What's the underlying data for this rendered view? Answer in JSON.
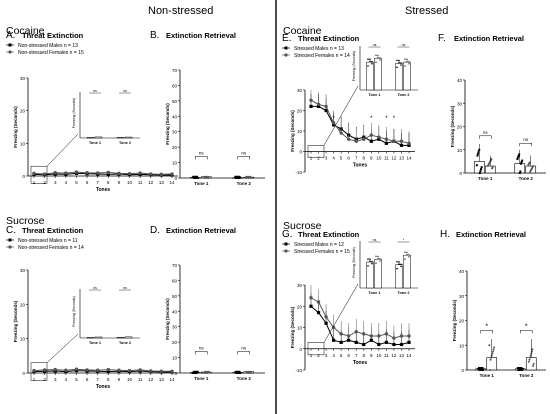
{
  "headers": {
    "left": "Non-stressed",
    "right": "Stressed"
  },
  "sections": {
    "top_left": "Cocaine",
    "top_right": "Cocaine",
    "bottom_left": "Sucrose",
    "bottom_right": "Sucrose"
  },
  "colors": {
    "male": "#000000",
    "female": "#555555",
    "axis": "#000000",
    "divider": "#000000"
  },
  "chart_data": [
    {
      "id": "A",
      "type": "line",
      "title": "Threat Extinction",
      "label": "A.",
      "xlabel": "Tones",
      "ylabel": "Freezing (Seconds)",
      "x": [
        1,
        2,
        3,
        4,
        5,
        6,
        7,
        8,
        9,
        10,
        11,
        12,
        13,
        14
      ],
      "ylim": [
        0,
        30
      ],
      "yticks": [
        0,
        10,
        20,
        30
      ],
      "legend": [
        "Non-stressed Males n = 13",
        "Non-stressed Females n = 15"
      ],
      "series": [
        {
          "name": "Non-stressed Males n = 13",
          "values": [
            0.5,
            0.4,
            0.6,
            0.5,
            0.8,
            0.7,
            0.6,
            0.5,
            0.6,
            0.4,
            0.5,
            0.4,
            0.3,
            0.3
          ]
        },
        {
          "name": "Non-stressed Females n = 15",
          "values": [
            0.8,
            0.6,
            1.0,
            0.9,
            1.2,
            1.0,
            0.9,
            1.1,
            0.8,
            0.7,
            0.9,
            0.6,
            0.5,
            0.6
          ]
        }
      ],
      "inset": {
        "ylabel": "Freezing (Seconds)",
        "categories": [
          "Tone 1",
          "Tone 2"
        ],
        "ylim": [
          0,
          30
        ],
        "values": [
          [
            0.5,
            0.8
          ],
          [
            0.4,
            0.7
          ]
        ],
        "sig": [
          "ns",
          "ns"
        ]
      }
    },
    {
      "id": "B",
      "type": "bar",
      "title": "Extinction Retrieval",
      "label": "B.",
      "ylabel": "Freezing (Seconds)",
      "categories": [
        "Tone 1",
        "Tone 2"
      ],
      "ylim": [
        0,
        70
      ],
      "yticks": [
        0,
        10,
        20,
        30,
        40,
        50,
        60,
        70
      ],
      "series": [
        {
          "values": [
            0.3,
            0.2
          ]
        },
        {
          "values": [
            0.8,
            0.5
          ]
        }
      ],
      "sig": [
        "ns",
        "ns"
      ]
    },
    {
      "id": "C",
      "type": "line",
      "title": "Threat Extinction",
      "label": "C.",
      "xlabel": "Tones",
      "ylabel": "Freezing (Seconds)",
      "x": [
        1,
        2,
        3,
        4,
        5,
        6,
        7,
        8,
        9,
        10,
        11,
        12,
        13,
        14
      ],
      "ylim": [
        0,
        30
      ],
      "yticks": [
        0,
        10,
        20,
        30
      ],
      "legend": [
        "Non-stressed Males n = 11",
        "Non-stressed Females n = 14"
      ],
      "series": [
        {
          "name": "Non-stressed Males n = 11",
          "values": [
            0.4,
            0.5,
            0.6,
            0.4,
            0.7,
            0.6,
            0.5,
            0.4,
            0.5,
            0.4,
            0.6,
            0.4,
            0.3,
            0.3
          ]
        },
        {
          "name": "Non-stressed Females n = 14",
          "values": [
            0.7,
            0.9,
            1.0,
            0.8,
            1.1,
            0.9,
            0.8,
            1.0,
            0.8,
            0.7,
            0.9,
            0.6,
            0.5,
            0.5
          ]
        }
      ],
      "inset": {
        "ylabel": "Freezing (Seconds)",
        "categories": [
          "Tone 1",
          "Tone 2"
        ],
        "ylim": [
          0,
          30
        ],
        "values": [
          [
            0.4,
            0.7
          ],
          [
            0.5,
            0.8
          ]
        ],
        "sig": [
          "ns",
          "ns"
        ]
      }
    },
    {
      "id": "D",
      "type": "bar",
      "title": "Extinction Retrieval",
      "label": "D.",
      "ylabel": "Freezing (Seconds)",
      "categories": [
        "Tone 1",
        "Tone 2"
      ],
      "ylim": [
        0,
        70
      ],
      "yticks": [
        0,
        10,
        20,
        30,
        40,
        50,
        60,
        70
      ],
      "series": [
        {
          "values": [
            0.3,
            0.3
          ]
        },
        {
          "values": [
            0.6,
            0.8
          ]
        }
      ],
      "sig": [
        "ns",
        "ns"
      ]
    },
    {
      "id": "E",
      "type": "line",
      "title": "Threat Extinction",
      "label": "E.",
      "xlabel": "Tones",
      "ylabel": "Freezing (Seconds)",
      "x": [
        1,
        2,
        3,
        4,
        5,
        6,
        7,
        8,
        9,
        10,
        11,
        12,
        13,
        14
      ],
      "ylim": [
        -10,
        30
      ],
      "yticks": [
        -10,
        0,
        10,
        20,
        30
      ],
      "legend": [
        "Stressed Males n = 13",
        "Stressed Females n = 14"
      ],
      "series": [
        {
          "name": "Stressed Males n = 13",
          "values": [
            22,
            22,
            20,
            13,
            11,
            8,
            6,
            7,
            5,
            6,
            4,
            5,
            3,
            3
          ]
        },
        {
          "name": "Stressed Females n = 14",
          "values": [
            25,
            23,
            22,
            14,
            9,
            6,
            5,
            6,
            8,
            7,
            6,
            5,
            5,
            4
          ]
        }
      ],
      "sig_tones": [
        4,
        9,
        11,
        12
      ],
      "inset": {
        "ylabel": "Freezing (Seconds)",
        "categories": [
          "Tone 1",
          "Tone 2"
        ],
        "ylim": [
          0,
          30
        ],
        "values": [
          [
            22,
            25
          ],
          [
            21,
            22
          ]
        ],
        "sig": [
          "ns",
          "ns"
        ]
      }
    },
    {
      "id": "F",
      "type": "bar",
      "title": "Extinction Retrieval",
      "label": "F.",
      "ylabel": "Freezing (Seconds)",
      "categories": [
        "Tone 1",
        "Tone 2"
      ],
      "ylim": [
        0,
        40
      ],
      "yticks": [
        0,
        10,
        20,
        30,
        40
      ],
      "series": [
        {
          "values": [
            5,
            4
          ]
        },
        {
          "values": [
            3,
            3
          ]
        }
      ],
      "sig": [
        "ns",
        "ns"
      ]
    },
    {
      "id": "G",
      "type": "line",
      "title": "Threat Extinction",
      "label": "G.",
      "xlabel": "Tones",
      "ylabel": "Freezing (Seconds)",
      "x": [
        1,
        2,
        3,
        4,
        5,
        6,
        7,
        8,
        9,
        10,
        11,
        12,
        13,
        14
      ],
      "ylim": [
        -10,
        30
      ],
      "yticks": [
        -10,
        0,
        10,
        20,
        30
      ],
      "legend": [
        "Stressed Males n = 12",
        "Stressed Females n = 15"
      ],
      "series": [
        {
          "name": "Stressed Males n = 12",
          "values": [
            20,
            17,
            12,
            4,
            3,
            4,
            3,
            2,
            4,
            2,
            3,
            2,
            2,
            3
          ]
        },
        {
          "name": "Stressed Females n = 15",
          "values": [
            24,
            22,
            15,
            10,
            7,
            6,
            8,
            7,
            6,
            6,
            7,
            5,
            6,
            6
          ]
        }
      ],
      "inset": {
        "ylabel": "Freezing (Seconds)",
        "categories": [
          "Tone 1",
          "Tone 2"
        ],
        "ylim": [
          0,
          30
        ],
        "values": [
          [
            19,
            21
          ],
          [
            17,
            24
          ]
        ],
        "sig": [
          "ns",
          "*"
        ]
      }
    },
    {
      "id": "H",
      "type": "bar",
      "title": "Extinction Retrieval",
      "label": "H.",
      "ylabel": "Freezing (Seconds)",
      "categories": [
        "Tone 1",
        "Tone 2"
      ],
      "ylim": [
        0,
        40
      ],
      "yticks": [
        0,
        10,
        20,
        30,
        40
      ],
      "series": [
        {
          "values": [
            0.5,
            0.5
          ]
        },
        {
          "values": [
            5,
            5
          ]
        }
      ],
      "sig": [
        "*",
        "*"
      ]
    }
  ]
}
